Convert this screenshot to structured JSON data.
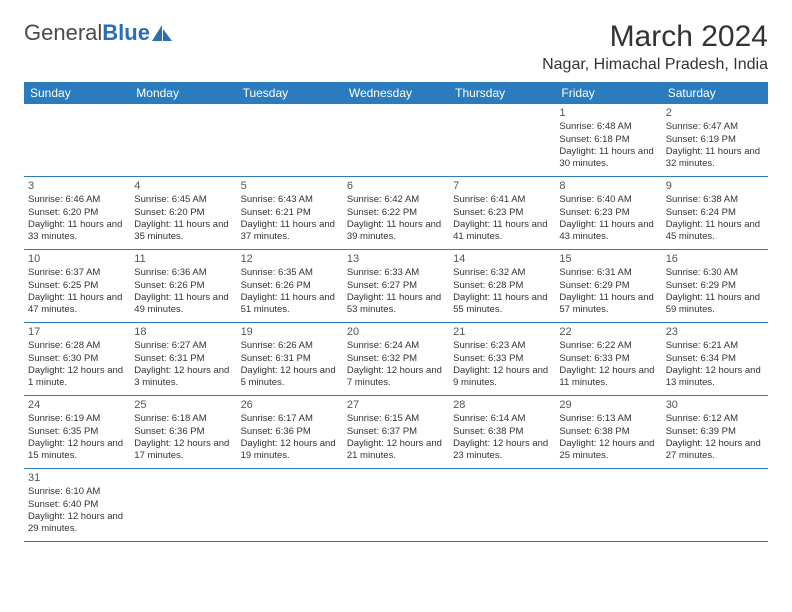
{
  "logo": {
    "part1": "General",
    "part2": "Blue"
  },
  "title": "March 2024",
  "location": "Nagar, Himachal Pradesh, India",
  "headers": [
    "Sunday",
    "Monday",
    "Tuesday",
    "Wednesday",
    "Thursday",
    "Friday",
    "Saturday"
  ],
  "colors": {
    "header_bg": "#2b7bbf",
    "header_text": "#ffffff",
    "row_divider": "#2b7bbf",
    "text": "#333333",
    "logo_blue": "#2b6eb5"
  },
  "weeks": [
    [
      {
        "empty": true
      },
      {
        "empty": true
      },
      {
        "empty": true
      },
      {
        "empty": true
      },
      {
        "empty": true
      },
      {
        "day": "1",
        "sunrise": "Sunrise: 6:48 AM",
        "sunset": "Sunset: 6:18 PM",
        "daylight": "Daylight: 11 hours and 30 minutes."
      },
      {
        "day": "2",
        "sunrise": "Sunrise: 6:47 AM",
        "sunset": "Sunset: 6:19 PM",
        "daylight": "Daylight: 11 hours and 32 minutes."
      }
    ],
    [
      {
        "day": "3",
        "sunrise": "Sunrise: 6:46 AM",
        "sunset": "Sunset: 6:20 PM",
        "daylight": "Daylight: 11 hours and 33 minutes."
      },
      {
        "day": "4",
        "sunrise": "Sunrise: 6:45 AM",
        "sunset": "Sunset: 6:20 PM",
        "daylight": "Daylight: 11 hours and 35 minutes."
      },
      {
        "day": "5",
        "sunrise": "Sunrise: 6:43 AM",
        "sunset": "Sunset: 6:21 PM",
        "daylight": "Daylight: 11 hours and 37 minutes."
      },
      {
        "day": "6",
        "sunrise": "Sunrise: 6:42 AM",
        "sunset": "Sunset: 6:22 PM",
        "daylight": "Daylight: 11 hours and 39 minutes."
      },
      {
        "day": "7",
        "sunrise": "Sunrise: 6:41 AM",
        "sunset": "Sunset: 6:23 PM",
        "daylight": "Daylight: 11 hours and 41 minutes."
      },
      {
        "day": "8",
        "sunrise": "Sunrise: 6:40 AM",
        "sunset": "Sunset: 6:23 PM",
        "daylight": "Daylight: 11 hours and 43 minutes."
      },
      {
        "day": "9",
        "sunrise": "Sunrise: 6:38 AM",
        "sunset": "Sunset: 6:24 PM",
        "daylight": "Daylight: 11 hours and 45 minutes."
      }
    ],
    [
      {
        "day": "10",
        "sunrise": "Sunrise: 6:37 AM",
        "sunset": "Sunset: 6:25 PM",
        "daylight": "Daylight: 11 hours and 47 minutes."
      },
      {
        "day": "11",
        "sunrise": "Sunrise: 6:36 AM",
        "sunset": "Sunset: 6:26 PM",
        "daylight": "Daylight: 11 hours and 49 minutes."
      },
      {
        "day": "12",
        "sunrise": "Sunrise: 6:35 AM",
        "sunset": "Sunset: 6:26 PM",
        "daylight": "Daylight: 11 hours and 51 minutes."
      },
      {
        "day": "13",
        "sunrise": "Sunrise: 6:33 AM",
        "sunset": "Sunset: 6:27 PM",
        "daylight": "Daylight: 11 hours and 53 minutes."
      },
      {
        "day": "14",
        "sunrise": "Sunrise: 6:32 AM",
        "sunset": "Sunset: 6:28 PM",
        "daylight": "Daylight: 11 hours and 55 minutes."
      },
      {
        "day": "15",
        "sunrise": "Sunrise: 6:31 AM",
        "sunset": "Sunset: 6:29 PM",
        "daylight": "Daylight: 11 hours and 57 minutes."
      },
      {
        "day": "16",
        "sunrise": "Sunrise: 6:30 AM",
        "sunset": "Sunset: 6:29 PM",
        "daylight": "Daylight: 11 hours and 59 minutes."
      }
    ],
    [
      {
        "day": "17",
        "sunrise": "Sunrise: 6:28 AM",
        "sunset": "Sunset: 6:30 PM",
        "daylight": "Daylight: 12 hours and 1 minute."
      },
      {
        "day": "18",
        "sunrise": "Sunrise: 6:27 AM",
        "sunset": "Sunset: 6:31 PM",
        "daylight": "Daylight: 12 hours and 3 minutes."
      },
      {
        "day": "19",
        "sunrise": "Sunrise: 6:26 AM",
        "sunset": "Sunset: 6:31 PM",
        "daylight": "Daylight: 12 hours and 5 minutes."
      },
      {
        "day": "20",
        "sunrise": "Sunrise: 6:24 AM",
        "sunset": "Sunset: 6:32 PM",
        "daylight": "Daylight: 12 hours and 7 minutes."
      },
      {
        "day": "21",
        "sunrise": "Sunrise: 6:23 AM",
        "sunset": "Sunset: 6:33 PM",
        "daylight": "Daylight: 12 hours and 9 minutes."
      },
      {
        "day": "22",
        "sunrise": "Sunrise: 6:22 AM",
        "sunset": "Sunset: 6:33 PM",
        "daylight": "Daylight: 12 hours and 11 minutes."
      },
      {
        "day": "23",
        "sunrise": "Sunrise: 6:21 AM",
        "sunset": "Sunset: 6:34 PM",
        "daylight": "Daylight: 12 hours and 13 minutes."
      }
    ],
    [
      {
        "day": "24",
        "sunrise": "Sunrise: 6:19 AM",
        "sunset": "Sunset: 6:35 PM",
        "daylight": "Daylight: 12 hours and 15 minutes."
      },
      {
        "day": "25",
        "sunrise": "Sunrise: 6:18 AM",
        "sunset": "Sunset: 6:36 PM",
        "daylight": "Daylight: 12 hours and 17 minutes."
      },
      {
        "day": "26",
        "sunrise": "Sunrise: 6:17 AM",
        "sunset": "Sunset: 6:36 PM",
        "daylight": "Daylight: 12 hours and 19 minutes."
      },
      {
        "day": "27",
        "sunrise": "Sunrise: 6:15 AM",
        "sunset": "Sunset: 6:37 PM",
        "daylight": "Daylight: 12 hours and 21 minutes."
      },
      {
        "day": "28",
        "sunrise": "Sunrise: 6:14 AM",
        "sunset": "Sunset: 6:38 PM",
        "daylight": "Daylight: 12 hours and 23 minutes."
      },
      {
        "day": "29",
        "sunrise": "Sunrise: 6:13 AM",
        "sunset": "Sunset: 6:38 PM",
        "daylight": "Daylight: 12 hours and 25 minutes."
      },
      {
        "day": "30",
        "sunrise": "Sunrise: 6:12 AM",
        "sunset": "Sunset: 6:39 PM",
        "daylight": "Daylight: 12 hours and 27 minutes."
      }
    ],
    [
      {
        "day": "31",
        "sunrise": "Sunrise: 6:10 AM",
        "sunset": "Sunset: 6:40 PM",
        "daylight": "Daylight: 12 hours and 29 minutes."
      },
      {
        "empty": true
      },
      {
        "empty": true
      },
      {
        "empty": true
      },
      {
        "empty": true
      },
      {
        "empty": true
      },
      {
        "empty": true
      }
    ]
  ]
}
